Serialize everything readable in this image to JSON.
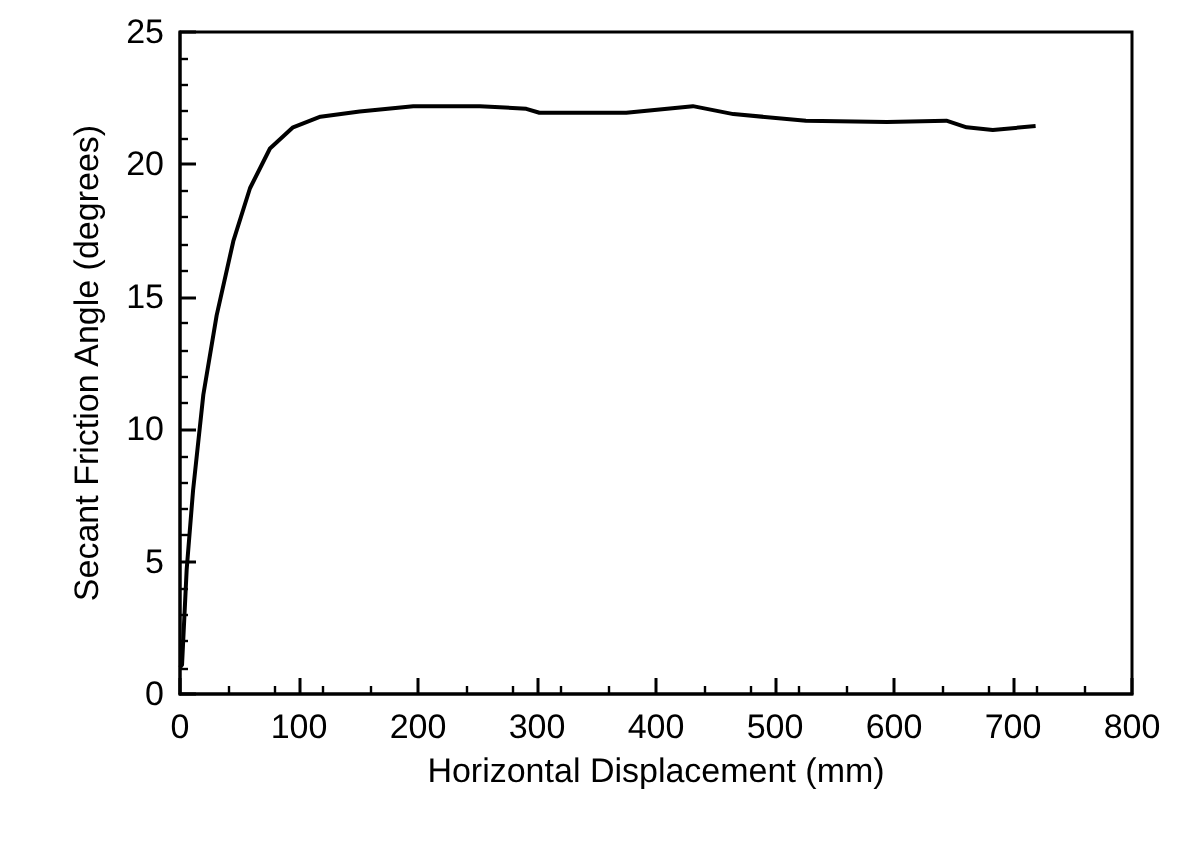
{
  "chart_data": {
    "type": "line",
    "xlabel": "Horizontal Displacement (mm)",
    "ylabel": "Secant Friction Angle (degrees)",
    "xlim": [
      0,
      800
    ],
    "xticks": [
      0,
      100,
      200,
      300,
      400,
      500,
      600,
      700,
      800
    ],
    "ylim": [
      0,
      25
    ],
    "yticks": [
      0,
      5,
      10,
      15,
      20,
      25
    ],
    "grid": false,
    "marker": "none",
    "line_style": "solid",
    "series": [
      {
        "color": "#000000",
        "x": [
          0,
          1.7,
          5.6,
          11,
          19.6,
          30.8,
          44.8,
          58.8,
          75.6,
          95,
          118,
          151,
          196,
          252,
          291,
          302,
          375,
          431,
          465,
          526,
          594,
          644,
          661,
          683,
          719
        ],
        "values": [
          1,
          1.1,
          4.7,
          7.7,
          11.3,
          14.3,
          17.1,
          19.1,
          20.6,
          21.4,
          21.8,
          22.0,
          22.2,
          22.2,
          22.1,
          21.95,
          21.95,
          22.2,
          21.9,
          21.65,
          21.6,
          21.65,
          21.4,
          21.3,
          21.45
        ]
      }
    ]
  }
}
